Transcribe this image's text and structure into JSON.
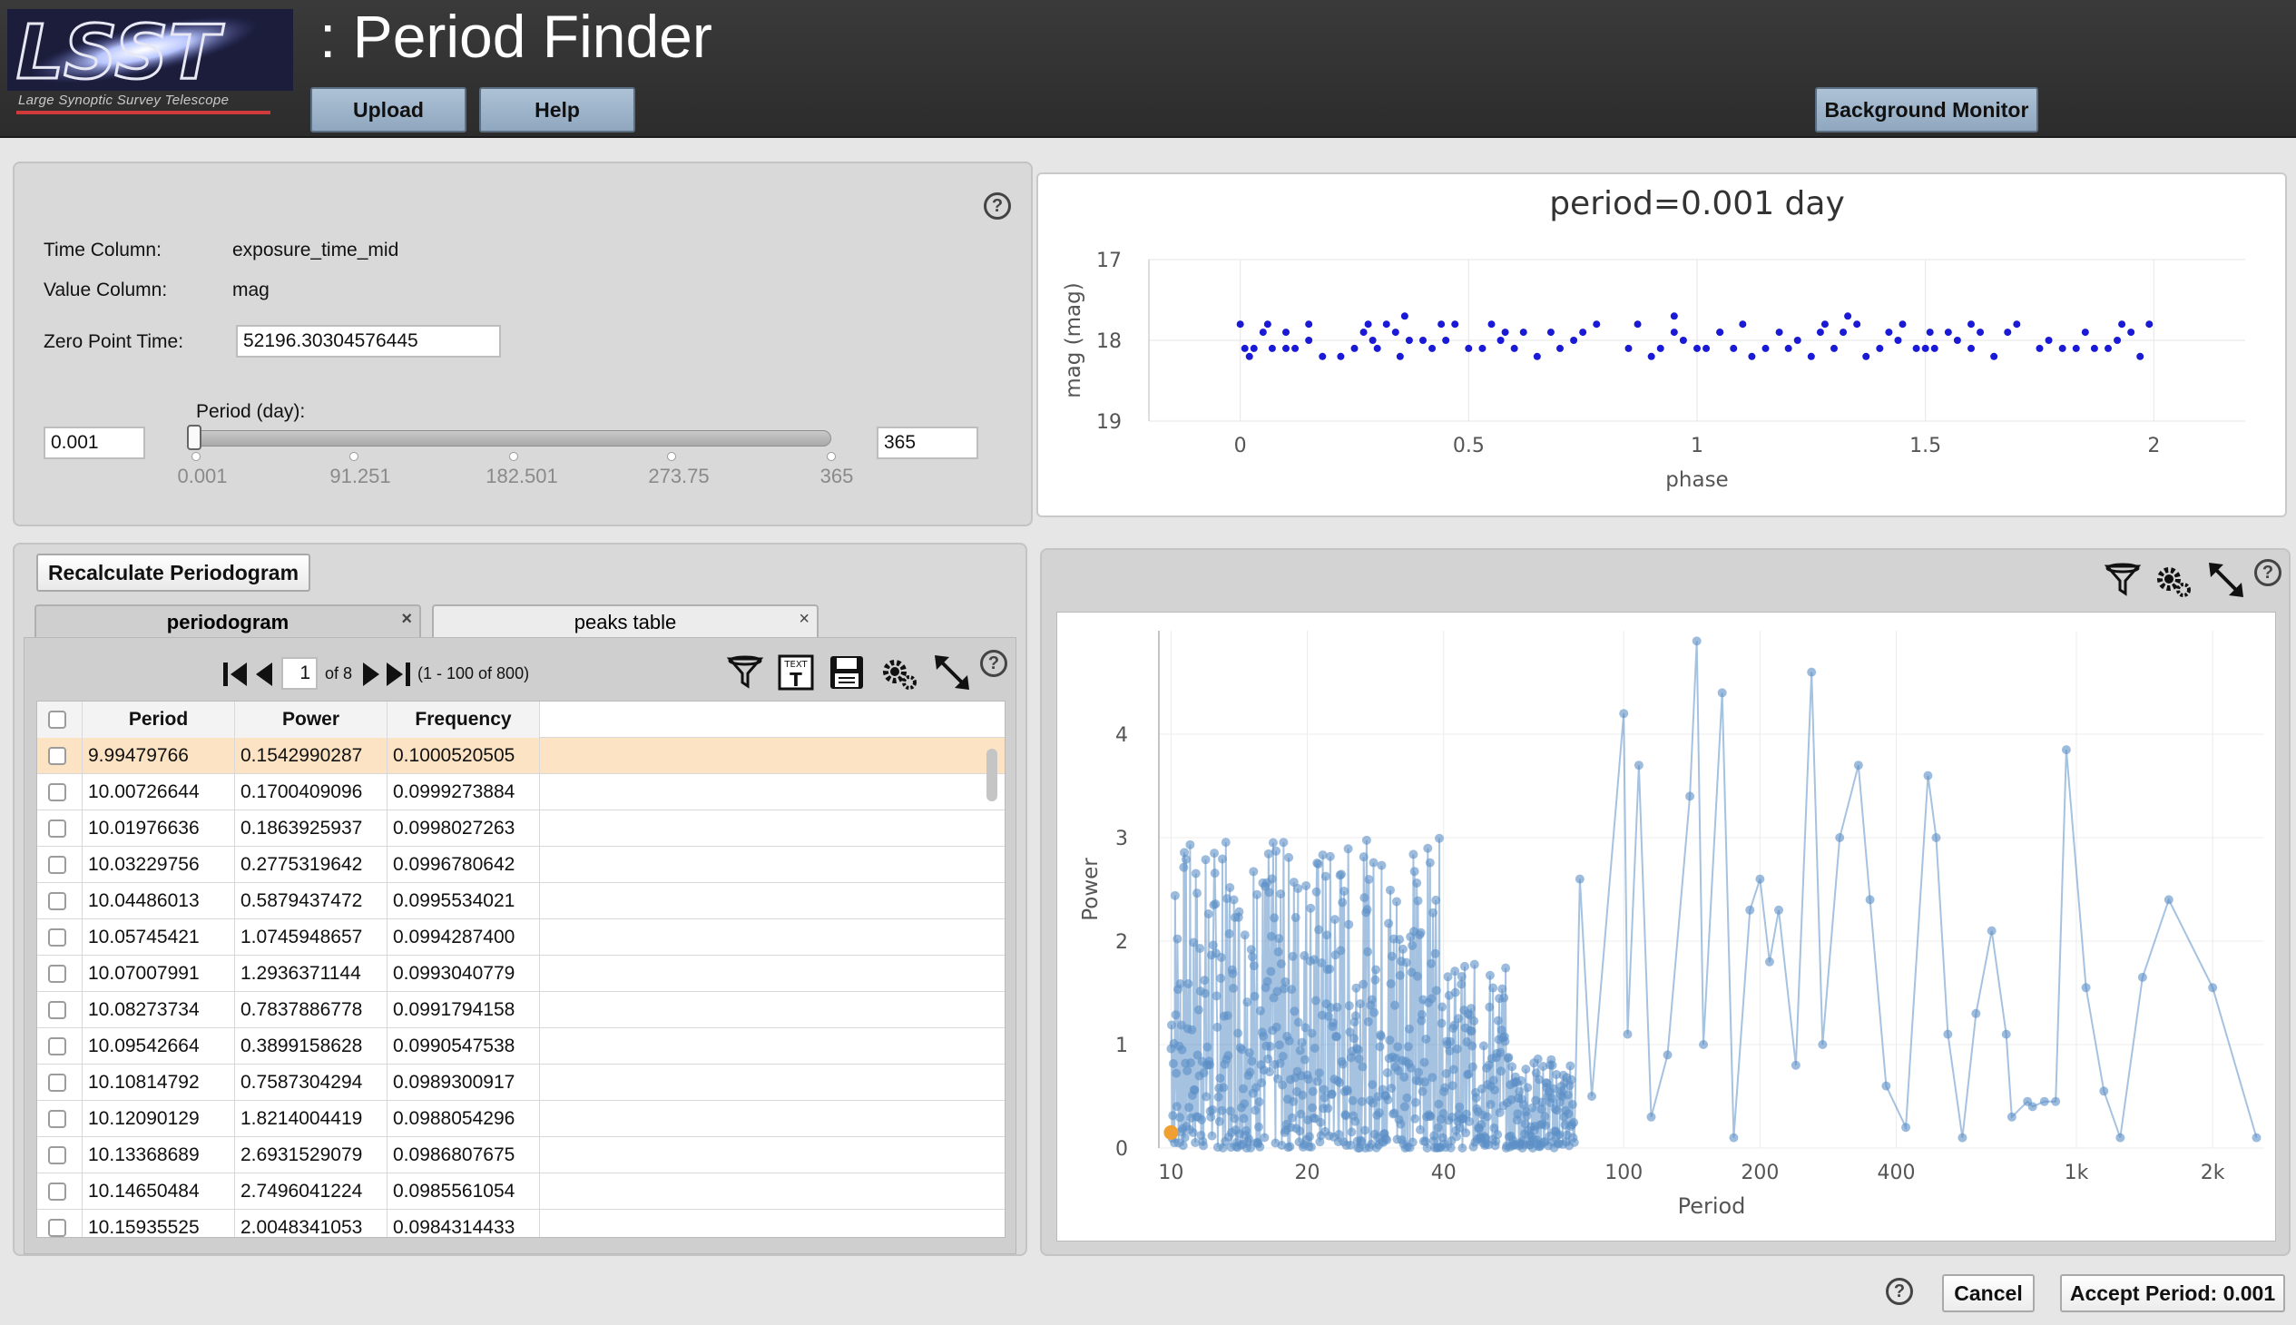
{
  "header": {
    "logo_text": "LSST",
    "logo_subtitle": "Large Synoptic Survey Telescope",
    "title": ": Period Finder",
    "upload_label": "Upload",
    "help_label": "Help",
    "background_monitor_label": "Background Monitor"
  },
  "params": {
    "help_glyph": "?",
    "time_column_label": "Time Column:",
    "time_column_value": "exposure_time_mid",
    "value_column_label": "Value Column:",
    "value_column_value": "mag",
    "zero_point_label": "Zero Point Time:",
    "zero_point_value": "52196.30304576445",
    "period_label": "Period (day):",
    "period_min_value": "0.001",
    "period_max_value": "365",
    "slider_value": 0.001,
    "slider_ticks": [
      "0.001",
      "91.251",
      "182.501",
      "273.75",
      "365"
    ]
  },
  "phase_chart": {
    "chart_data": {
      "type": "scatter",
      "title": "period=0.001 day",
      "xlabel": "phase",
      "ylabel": "mag (mag)",
      "xlim": [
        -0.2,
        2.2
      ],
      "ylim": [
        19,
        17
      ],
      "y_reversed": true,
      "x_ticks": [
        "0",
        "0.5",
        "1",
        "1.5",
        "2"
      ],
      "y_ticks": [
        "17",
        "18",
        "19"
      ],
      "grid": true,
      "color": "#1a1ad6",
      "points": [
        [
          0.0,
          17.8
        ],
        [
          0.01,
          18.1
        ],
        [
          0.03,
          18.1
        ],
        [
          0.05,
          17.9
        ],
        [
          0.07,
          18.1
        ],
        [
          0.1,
          18.1
        ],
        [
          0.12,
          18.1
        ],
        [
          0.15,
          18.0
        ],
        [
          0.06,
          17.8
        ],
        [
          0.1,
          17.9
        ],
        [
          0.18,
          18.2
        ],
        [
          0.22,
          18.2
        ],
        [
          0.25,
          18.1
        ],
        [
          0.27,
          17.9
        ],
        [
          0.28,
          17.8
        ],
        [
          0.3,
          18.1
        ],
        [
          0.32,
          17.8
        ],
        [
          0.34,
          17.9
        ],
        [
          0.35,
          18.2
        ],
        [
          0.37,
          18.0
        ],
        [
          0.4,
          18.0
        ],
        [
          0.42,
          18.1
        ],
        [
          0.44,
          17.8
        ],
        [
          0.47,
          17.8
        ],
        [
          0.5,
          18.1
        ],
        [
          0.53,
          18.1
        ],
        [
          0.55,
          17.8
        ],
        [
          0.57,
          18.0
        ],
        [
          0.6,
          18.1
        ],
        [
          0.62,
          17.9
        ],
        [
          0.65,
          18.2
        ],
        [
          0.68,
          17.9
        ],
        [
          0.7,
          18.1
        ],
        [
          0.75,
          17.9
        ],
        [
          0.78,
          17.8
        ],
        [
          0.85,
          18.1
        ],
        [
          0.87,
          17.8
        ],
        [
          0.9,
          18.2
        ],
        [
          0.92,
          18.1
        ],
        [
          0.95,
          17.9
        ],
        [
          0.97,
          18.0
        ],
        [
          1.0,
          18.1
        ],
        [
          1.02,
          18.1
        ],
        [
          1.05,
          17.9
        ],
        [
          1.08,
          18.1
        ],
        [
          1.1,
          17.8
        ],
        [
          1.12,
          18.2
        ],
        [
          1.15,
          18.1
        ],
        [
          1.18,
          17.9
        ],
        [
          1.2,
          18.1
        ],
        [
          1.22,
          18.0
        ],
        [
          1.25,
          18.2
        ],
        [
          1.28,
          17.8
        ],
        [
          1.3,
          18.1
        ],
        [
          1.32,
          17.9
        ],
        [
          1.35,
          17.8
        ],
        [
          1.37,
          18.2
        ],
        [
          1.4,
          18.1
        ],
        [
          1.42,
          17.9
        ],
        [
          1.45,
          17.8
        ],
        [
          1.48,
          18.1
        ],
        [
          1.5,
          18.1
        ],
        [
          1.52,
          18.1
        ],
        [
          1.55,
          17.9
        ],
        [
          1.57,
          18.0
        ],
        [
          1.6,
          18.1
        ],
        [
          1.62,
          17.9
        ],
        [
          1.65,
          18.2
        ],
        [
          1.68,
          17.9
        ],
        [
          1.7,
          17.8
        ],
        [
          1.75,
          18.1
        ],
        [
          1.8,
          18.1
        ],
        [
          1.83,
          18.1
        ],
        [
          1.85,
          17.9
        ],
        [
          1.87,
          18.1
        ],
        [
          1.9,
          18.1
        ],
        [
          1.92,
          18.0
        ],
        [
          1.95,
          17.9
        ],
        [
          1.97,
          18.2
        ],
        [
          1.99,
          17.8
        ],
        [
          0.02,
          18.2
        ],
        [
          0.15,
          17.8
        ],
        [
          0.29,
          18.0
        ],
        [
          0.45,
          18.0
        ],
        [
          0.58,
          17.9
        ],
        [
          0.73,
          18.0
        ],
        [
          0.95,
          17.7
        ],
        [
          1.05,
          17.9
        ],
        [
          1.27,
          17.9
        ],
        [
          1.44,
          18.0
        ],
        [
          1.6,
          17.8
        ],
        [
          1.77,
          18.0
        ],
        [
          1.93,
          17.8
        ],
        [
          0.36,
          17.7
        ],
        [
          1.33,
          17.7
        ],
        [
          1.51,
          17.9
        ]
      ]
    }
  },
  "periodogram_panel": {
    "recalc_label": "Recalculate Periodogram",
    "tabs": [
      {
        "label": "periodogram",
        "close": "×"
      },
      {
        "label": "peaks table",
        "close": "×"
      }
    ],
    "paging": {
      "page": "1",
      "of_text": "of 8",
      "range_text": "(1 - 100 of 800)"
    },
    "icons": [
      "filter-icon",
      "text-view-icon",
      "save-icon",
      "settings-icon",
      "expand-icon",
      "help-icon"
    ],
    "help_glyph": "?",
    "columns": [
      "Period",
      "Power",
      "Frequency"
    ],
    "rows": [
      [
        "9.99479766",
        "0.1542990287",
        "0.1000520505"
      ],
      [
        "10.00726644",
        "0.1700409096",
        "0.0999273884"
      ],
      [
        "10.01976636",
        "0.1863925937",
        "0.0998027263"
      ],
      [
        "10.03229756",
        "0.2775319642",
        "0.0996780642"
      ],
      [
        "10.04486013",
        "0.5879437472",
        "0.0995534021"
      ],
      [
        "10.05745421",
        "1.0745948657",
        "0.0994287400"
      ],
      [
        "10.07007991",
        "1.2936371144",
        "0.0993040779"
      ],
      [
        "10.08273734",
        "0.7837886778",
        "0.0991794158"
      ],
      [
        "10.09542664",
        "0.3899158628",
        "0.0990547538"
      ],
      [
        "10.10814792",
        "0.7587304294",
        "0.0989300917"
      ],
      [
        "10.12090129",
        "1.8214004419",
        "0.0988054296"
      ],
      [
        "10.13368689",
        "2.6931529079",
        "0.0986807675"
      ],
      [
        "10.14650484",
        "2.7496041224",
        "0.0985561054"
      ],
      [
        "10.15935525",
        "2.0048341053",
        "0.0984314433"
      ]
    ],
    "selected_row": 0
  },
  "periodogram_chart": {
    "help_glyph": "?",
    "chart_data": {
      "type": "line",
      "xlabel": "Period",
      "ylabel": "Power",
      "x_scale": "log",
      "xlim": [
        9.4,
        2600
      ],
      "ylim": [
        0,
        5
      ],
      "x_ticks": [
        {
          "value": 10,
          "label": "10"
        },
        {
          "value": 20,
          "label": "20"
        },
        {
          "value": 40,
          "label": "40"
        },
        {
          "value": 100,
          "label": "100"
        },
        {
          "value": 200,
          "label": "200"
        },
        {
          "value": 400,
          "label": "400"
        },
        {
          "value": 1000,
          "label": "1k"
        },
        {
          "value": 2000,
          "label": "2k"
        }
      ],
      "y_ticks": [
        "0",
        "1",
        "2",
        "3",
        "4"
      ],
      "color": "#5b8fc7",
      "highlight_point": {
        "x": 10.0,
        "y": 0.15,
        "color": "#f0a030"
      },
      "series_peaks": [
        [
          80,
          2.6
        ],
        [
          85,
          0.5
        ],
        [
          100,
          4.2
        ],
        [
          102,
          1.1
        ],
        [
          108,
          3.7
        ],
        [
          115,
          0.3
        ],
        [
          125,
          0.9
        ],
        [
          140,
          3.4
        ],
        [
          145,
          4.9
        ],
        [
          150,
          1.0
        ],
        [
          165,
          4.4
        ],
        [
          175,
          0.1
        ],
        [
          190,
          2.3
        ],
        [
          200,
          2.6
        ],
        [
          210,
          1.8
        ],
        [
          220,
          2.3
        ],
        [
          240,
          0.8
        ],
        [
          260,
          4.6
        ],
        [
          275,
          1.0
        ],
        [
          300,
          3.0
        ],
        [
          330,
          3.7
        ],
        [
          350,
          2.4
        ],
        [
          380,
          0.6
        ],
        [
          420,
          0.2
        ],
        [
          470,
          3.6
        ],
        [
          490,
          3.0
        ],
        [
          520,
          1.1
        ],
        [
          560,
          0.1
        ],
        [
          600,
          1.3
        ],
        [
          650,
          2.1
        ],
        [
          700,
          1.1
        ],
        [
          720,
          0.3
        ],
        [
          780,
          0.45
        ],
        [
          800,
          0.4
        ],
        [
          850,
          0.45
        ],
        [
          900,
          0.45
        ],
        [
          950,
          3.85
        ],
        [
          1050,
          1.55
        ],
        [
          1150,
          0.55
        ],
        [
          1250,
          0.1
        ],
        [
          1400,
          1.65
        ],
        [
          1600,
          2.4
        ],
        [
          2000,
          1.55
        ],
        [
          2500,
          0.1
        ]
      ]
    }
  },
  "footer": {
    "help_glyph": "?",
    "cancel_label": "Cancel",
    "accept_label": "Accept Period: 0.001"
  }
}
